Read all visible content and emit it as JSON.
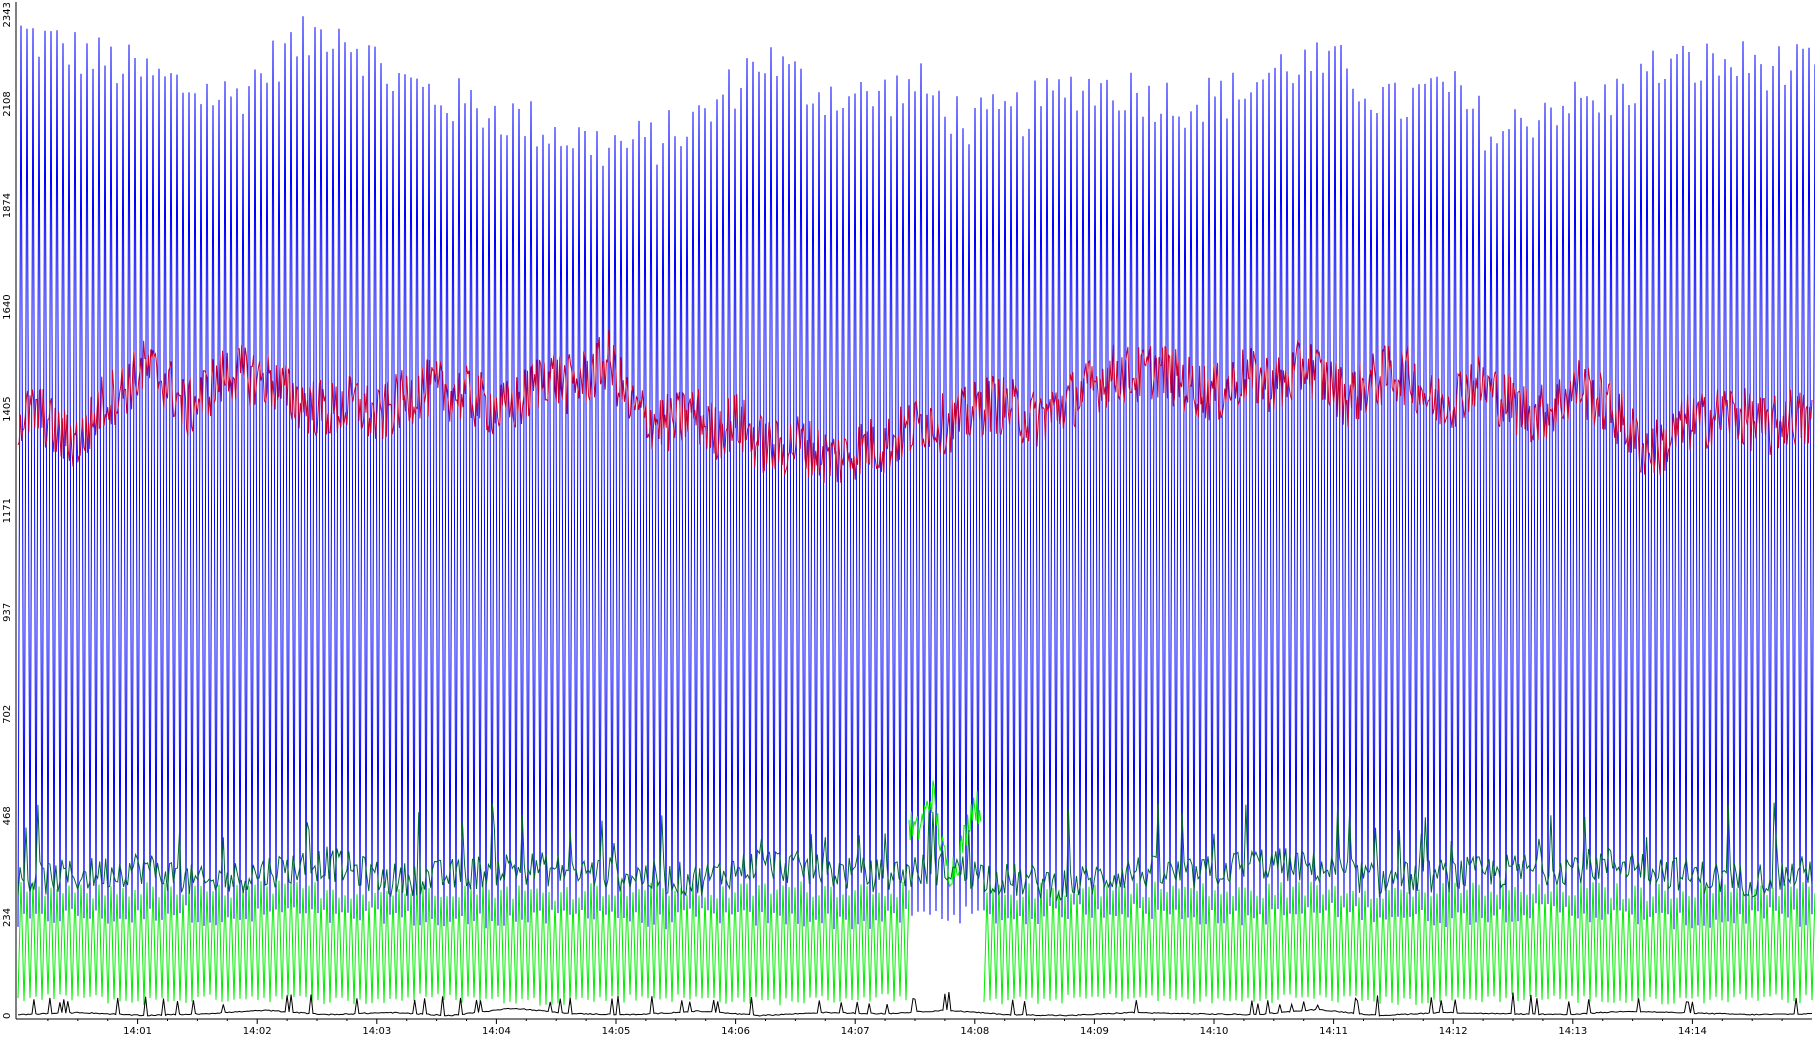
{
  "chart_data": {
    "type": "line",
    "title": "",
    "xlabel": "",
    "ylabel": "",
    "y_ticks": [
      0,
      234,
      468,
      702,
      937,
      1171,
      1405,
      1640,
      1874,
      2108,
      2343
    ],
    "ylim": [
      0,
      2343
    ],
    "x_ticks": [
      "14:01",
      "14:02",
      "14:03",
      "14:04",
      "14:05",
      "14:06",
      "14:07",
      "14:08",
      "14:09",
      "14:10",
      "14:11",
      "14:12",
      "14:13",
      "14:14"
    ],
    "x_range_minutes": [
      "14:00",
      "14:15"
    ],
    "grid": false,
    "legend": "none",
    "series": [
      {
        "color": "#0000ff",
        "pattern": "oscillating",
        "peak_values": [
          2270,
          2230,
          2190,
          2150,
          2120,
          2230,
          2290,
          2170,
          2120,
          2090,
          2050,
          2010,
          2020,
          2080,
          2220,
          2140,
          2120,
          2150,
          2060,
          2090,
          2150,
          2140,
          2110,
          2130,
          2200,
          2190,
          2100,
          2150,
          2030,
          2110,
          2110,
          2190,
          2200,
          2200,
          2180
        ],
        "trough_values": [
          220,
          240,
          230,
          250,
          220,
          250,
          230,
          240,
          220,
          230,
          230,
          250,
          220,
          240,
          230,
          230,
          220,
          240,
          240,
          230,
          250,
          250,
          240,
          230,
          240,
          250,
          240,
          230,
          240,
          250,
          240,
          230,
          220,
          240,
          230
        ],
        "sample_count": 300,
        "base_level": 1160
      },
      {
        "color": "#cc0033",
        "pattern": "noisy",
        "values": [
          1380,
          1400,
          1340,
          1330,
          1420,
          1450,
          1500,
          1470,
          1400,
          1450,
          1490,
          1480,
          1470,
          1430,
          1410,
          1400,
          1420,
          1380,
          1420,
          1450,
          1450,
          1440,
          1420,
          1400,
          1430,
          1490,
          1460,
          1480,
          1520,
          1410,
          1380,
          1370,
          1400,
          1350,
          1380,
          1330,
          1310,
          1330,
          1300,
          1290,
          1320,
          1320,
          1350,
          1380,
          1370,
          1390,
          1420,
          1410,
          1380,
          1400,
          1430,
          1460,
          1490,
          1480,
          1500,
          1470,
          1450,
          1440,
          1480,
          1470,
          1460,
          1510,
          1470,
          1430,
          1460,
          1490,
          1480,
          1420,
          1430,
          1470,
          1440,
          1410,
          1390,
          1420,
          1460,
          1420,
          1380,
          1310,
          1320,
          1370,
          1380,
          1400,
          1380,
          1360,
          1390,
          1370
        ]
      },
      {
        "color": "#00ee00",
        "pattern": "oscillating",
        "peak_values": [
          300,
          290,
          300,
          290,
          300,
          300,
          290,
          300,
          300,
          290,
          300,
          300,
          290,
          300,
          300,
          300,
          300,
          290,
          300,
          300,
          300,
          290,
          300,
          300,
          290,
          300,
          290,
          300,
          290,
          300,
          300,
          300
        ],
        "trough_values": [
          45,
          50,
          40,
          45,
          50,
          45,
          40,
          50,
          45,
          40,
          45,
          50,
          45,
          40,
          45,
          50,
          45,
          40,
          45,
          50,
          45,
          40,
          50,
          45,
          40,
          45,
          50,
          45,
          40,
          45,
          50,
          45
        ],
        "sample_count": 300,
        "gap_range_minutes": [
          7.45,
          8.05
        ],
        "gap_values": [
          450,
          430,
          470,
          520,
          400,
          340,
          360,
          420,
          500,
          480
        ]
      },
      {
        "color": "#006633",
        "pattern": "spiky",
        "values": [
          320,
          330,
          350,
          310,
          340,
          360,
          320,
          330,
          350,
          340,
          330,
          320,
          360,
          340,
          330,
          350,
          320,
          310,
          340,
          330,
          360,
          350,
          320,
          330,
          340,
          350,
          360,
          330,
          320,
          340
        ],
        "spike_values": [
          480,
          420,
          460,
          440,
          470,
          410,
          450,
          430,
          460,
          470,
          440,
          480,
          450,
          420,
          470,
          450,
          440,
          460,
          480,
          430,
          470,
          440,
          460,
          450,
          430,
          470,
          450,
          440,
          460,
          470
        ]
      },
      {
        "color": "#000000",
        "pattern": "spiky",
        "values": [
          10,
          15,
          8,
          12,
          20,
          10,
          15,
          8,
          25,
          12,
          10,
          18,
          8,
          15,
          12,
          20,
          10,
          8,
          15,
          12,
          10,
          22,
          8,
          15,
          12,
          10,
          18,
          14,
          10,
          12
        ],
        "spike_values": [
          50,
          40,
          55,
          35,
          45,
          60,
          40,
          50,
          35,
          45,
          55,
          40,
          50,
          45,
          35,
          60,
          40,
          50,
          45,
          55,
          40,
          35,
          50,
          45,
          60,
          40,
          50,
          35,
          45,
          55
        ]
      }
    ]
  }
}
